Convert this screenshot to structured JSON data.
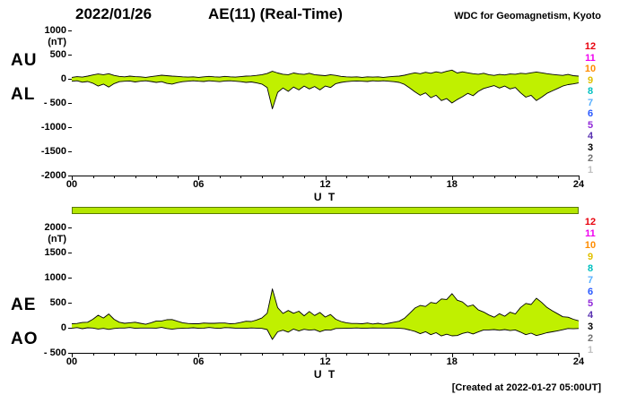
{
  "header": {
    "date": "2022/01/26",
    "title": "AE(11) (Real-Time)",
    "source": "WDC for Geomagnetism, Kyoto"
  },
  "footer": {
    "created_at": "[Created at 2022-01-27 05:00UT]"
  },
  "availability_bar": {
    "color": "#b4e600"
  },
  "station_count_legend": {
    "values": [
      "12",
      "11",
      "10",
      "9",
      "8",
      "7",
      "6",
      "5",
      "4",
      "3",
      "2",
      "1"
    ],
    "colors": [
      "#e8000d",
      "#f000f0",
      "#ff8c00",
      "#e0c000",
      "#00c0c0",
      "#58b0ff",
      "#2858ff",
      "#9028d8",
      "#5830b0",
      "#000000",
      "#707070",
      "#c0c0c0"
    ]
  },
  "panels": [
    {
      "name": "AU/AL",
      "left_labels": [
        "AU",
        "AL"
      ],
      "unit_label": "(nT)",
      "y_tick_labels": [
        "1000",
        "500",
        "0",
        "- 500",
        "-1000",
        "-1500",
        "-2000"
      ],
      "y_tick_values": [
        1000,
        500,
        0,
        -500,
        -1000,
        -1500,
        -2000
      ],
      "x_tick_labels": [
        "00",
        "06",
        "12",
        "18",
        "24"
      ],
      "x_tick_values": [
        0,
        6,
        12,
        18,
        24
      ],
      "x_axis_label": "U T"
    },
    {
      "name": "AE/AO",
      "left_labels": [
        "AE",
        "AO"
      ],
      "unit_label": "(nT)",
      "y_tick_labels": [
        "2000",
        "1500",
        "1000",
        "500",
        "0",
        "- 500"
      ],
      "y_tick_values": [
        2000,
        1500,
        1000,
        500,
        0,
        -500
      ],
      "x_tick_labels": [
        "00",
        "06",
        "12",
        "18",
        "24"
      ],
      "x_tick_values": [
        0,
        6,
        12,
        18,
        24
      ],
      "x_axis_label": "U T"
    }
  ],
  "chart_data": [
    {
      "type": "area",
      "title": "AU/AL",
      "xlabel": "U T",
      "ylabel": "nT",
      "x0": 0,
      "dx": 0.25,
      "xlim": [
        0,
        24
      ],
      "ylim": [
        -2000,
        1000
      ],
      "xtick_hours": [
        0,
        6,
        12,
        18,
        24
      ],
      "grid": false,
      "fill_color": "#c0f000",
      "line_color": "#000000",
      "series": [
        {
          "name": "AU",
          "values": [
            30,
            45,
            35,
            55,
            80,
            100,
            85,
            105,
            70,
            50,
            40,
            55,
            45,
            40,
            30,
            45,
            60,
            75,
            65,
            55,
            50,
            40,
            35,
            40,
            30,
            40,
            50,
            40,
            35,
            50,
            40,
            35,
            45,
            55,
            60,
            70,
            85,
            110,
            155,
            120,
            95,
            85,
            120,
            100,
            90,
            115,
            85,
            75,
            65,
            85,
            70,
            50,
            40,
            35,
            40,
            30,
            40,
            35,
            40,
            30,
            40,
            50,
            55,
            75,
            100,
            125,
            105,
            135,
            115,
            145,
            125,
            155,
            180,
            120,
            145,
            125,
            105,
            95,
            115,
            85,
            70,
            90,
            80,
            100,
            95,
            115,
            105,
            125,
            140,
            125,
            105,
            90,
            80,
            70,
            90,
            65,
            55
          ]
        },
        {
          "name": "AL",
          "values": [
            -50,
            -40,
            -70,
            -55,
            -90,
            -150,
            -110,
            -170,
            -100,
            -60,
            -50,
            -45,
            -65,
            -50,
            -40,
            -55,
            -75,
            -60,
            -95,
            -110,
            -80,
            -60,
            -50,
            -40,
            -50,
            -55,
            -40,
            -50,
            -60,
            -45,
            -40,
            -50,
            -60,
            -75,
            -65,
            -85,
            -110,
            -180,
            -620,
            -280,
            -190,
            -260,
            -170,
            -230,
            -150,
            -210,
            -160,
            -230,
            -150,
            -180,
            -100,
            -75,
            -60,
            -50,
            -45,
            -50,
            -55,
            -40,
            -50,
            -40,
            -50,
            -60,
            -75,
            -115,
            -190,
            -270,
            -340,
            -290,
            -390,
            -340,
            -450,
            -410,
            -500,
            -430,
            -370,
            -300,
            -350,
            -260,
            -200,
            -170,
            -140,
            -190,
            -150,
            -210,
            -180,
            -290,
            -380,
            -340,
            -450,
            -380,
            -300,
            -250,
            -200,
            -150,
            -120,
            -105,
            -85
          ]
        }
      ]
    },
    {
      "type": "area",
      "title": "AE/AO",
      "xlabel": "U T",
      "ylabel": "nT",
      "x0": 0,
      "dx": 0.25,
      "xlim": [
        0,
        24
      ],
      "ylim": [
        -500,
        2000
      ],
      "xtick_hours": [
        0,
        6,
        12,
        18,
        24
      ],
      "grid": false,
      "fill_color": "#c0f000",
      "line_color": "#000000",
      "series": [
        {
          "name": "AE",
          "values": [
            80,
            85,
            105,
            110,
            170,
            250,
            195,
            275,
            170,
            110,
            90,
            100,
            110,
            90,
            70,
            100,
            135,
            135,
            160,
            165,
            130,
            100,
            85,
            80,
            80,
            95,
            90,
            90,
            95,
            95,
            80,
            85,
            105,
            130,
            125,
            155,
            195,
            290,
            775,
            400,
            285,
            345,
            290,
            330,
            240,
            325,
            245,
            305,
            215,
            265,
            170,
            125,
            100,
            85,
            85,
            80,
            95,
            75,
            90,
            70,
            90,
            110,
            130,
            190,
            290,
            395,
            445,
            425,
            505,
            485,
            575,
            565,
            680,
            550,
            515,
            425,
            455,
            355,
            315,
            255,
            210,
            280,
            230,
            310,
            275,
            405,
            485,
            465,
            590,
            505,
            405,
            340,
            280,
            220,
            210,
            170,
            140
          ]
        },
        {
          "name": "AO",
          "values": [
            -10,
            3,
            -18,
            0,
            -5,
            -25,
            -13,
            -33,
            -15,
            -5,
            -5,
            5,
            -10,
            -5,
            -5,
            -5,
            -8,
            8,
            -15,
            -28,
            -15,
            -10,
            -8,
            0,
            -10,
            -8,
            5,
            -5,
            -13,
            3,
            0,
            -8,
            -8,
            -10,
            -3,
            -8,
            -13,
            -35,
            -233,
            -80,
            -48,
            -88,
            -25,
            -65,
            -30,
            -48,
            -38,
            -78,
            -43,
            -48,
            -15,
            -13,
            -10,
            -8,
            -3,
            -10,
            -8,
            -3,
            -5,
            -5,
            -5,
            -5,
            -10,
            -20,
            -45,
            -73,
            -118,
            -78,
            -138,
            -98,
            -163,
            -128,
            -160,
            -155,
            -113,
            -88,
            -123,
            -83,
            -43,
            -43,
            -35,
            -50,
            -35,
            -55,
            -43,
            -88,
            -138,
            -108,
            -155,
            -128,
            -98,
            -80,
            -60,
            -40,
            -15,
            -20,
            -15
          ]
        }
      ]
    }
  ]
}
